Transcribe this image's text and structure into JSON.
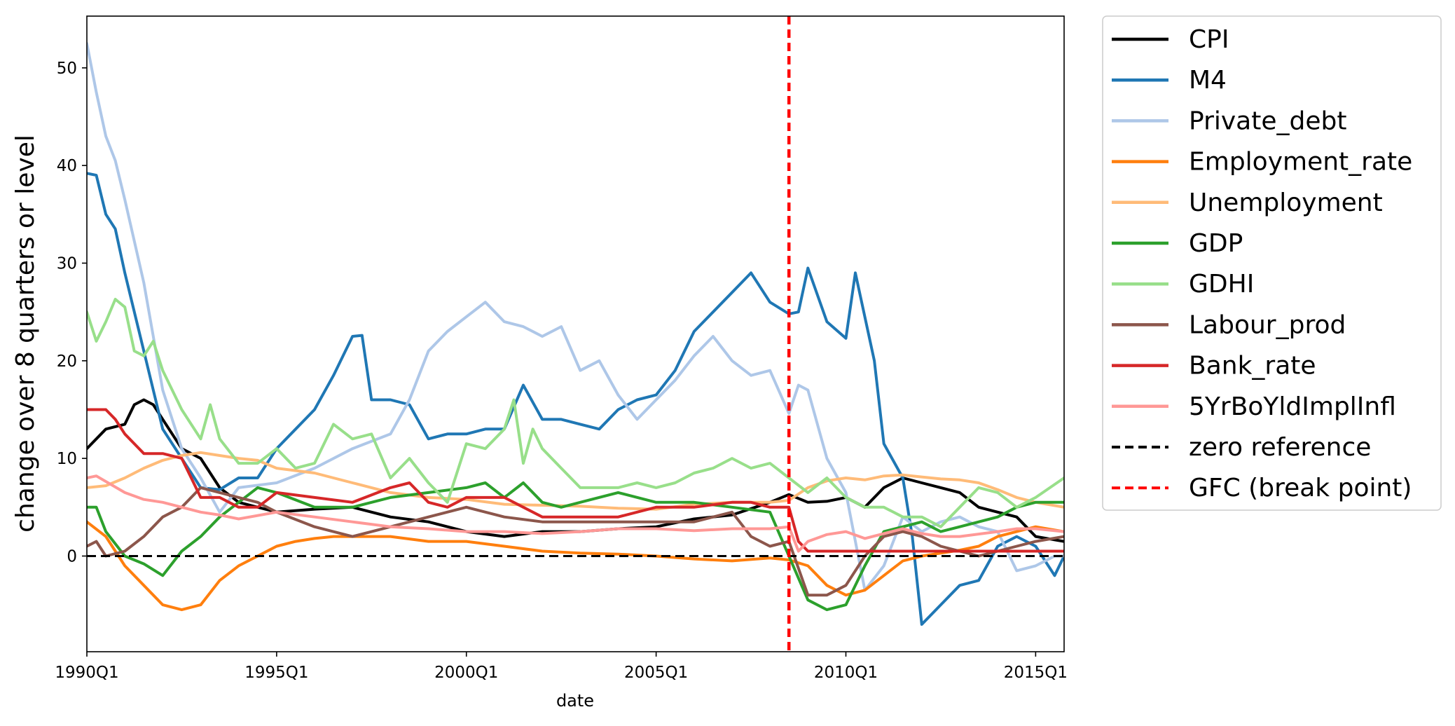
{
  "chart_data": {
    "type": "line",
    "title": "",
    "xlabel": "date",
    "ylabel": "change over 8 quarters or level",
    "xlim": [
      1990.0,
      2015.75
    ],
    "ylim": [
      -9.8,
      55.3
    ],
    "x_ticks": [
      {
        "value": 1990.0,
        "label": "1990Q1"
      },
      {
        "value": 1995.0,
        "label": "1995Q1"
      },
      {
        "value": 2000.0,
        "label": "2000Q1"
      },
      {
        "value": 2005.0,
        "label": "2005Q1"
      },
      {
        "value": 2010.0,
        "label": "2010Q1"
      },
      {
        "value": 2015.0,
        "label": "2015Q1"
      }
    ],
    "y_ticks": [
      0,
      10,
      20,
      30,
      40,
      50
    ],
    "grid": false,
    "legend": "outside-right",
    "series": [
      {
        "name": "CPI",
        "color": "#000000",
        "x": [
          1990.0,
          1990.5,
          1991.0,
          1991.25,
          1991.5,
          1991.75,
          1992.0,
          1992.5,
          1993.0,
          1993.5,
          1994.0,
          1995.0,
          1996.0,
          1997.0,
          1998.0,
          1999.0,
          2000.0,
          2001.0,
          2002.0,
          2003.0,
          2004.0,
          2005.0,
          2006.0,
          2007.0,
          2008.0,
          2008.5,
          2009.0,
          2009.5,
          2010.0,
          2010.5,
          2011.0,
          2011.5,
          2012.0,
          2012.5,
          2013.0,
          2013.5,
          2014.0,
          2014.5,
          2015.0,
          2015.75
        ],
        "y": [
          11,
          13,
          13.5,
          15.5,
          16,
          15.5,
          14,
          11,
          10,
          7,
          5.5,
          4.5,
          4.8,
          5,
          4,
          3.5,
          2.5,
          2,
          2.5,
          2.5,
          2.8,
          3,
          3.8,
          4.2,
          5.5,
          6.3,
          5.5,
          5.6,
          6,
          5,
          7,
          8,
          7.5,
          7,
          6.5,
          5,
          4.5,
          4,
          2,
          1.5
        ]
      },
      {
        "name": "M4",
        "color": "#1f77b4",
        "x": [
          1990.0,
          1990.25,
          1990.5,
          1990.75,
          1991.0,
          1991.5,
          1992.0,
          1992.5,
          1993.0,
          1993.5,
          1994.0,
          1994.5,
          1995.0,
          1995.5,
          1996.0,
          1996.5,
          1997.0,
          1997.25,
          1997.5,
          1998.0,
          1998.5,
          1999.0,
          1999.5,
          2000.0,
          2000.5,
          2001.0,
          2001.5,
          2002.0,
          2002.5,
          2003.0,
          2003.5,
          2004.0,
          2004.5,
          2005.0,
          2005.5,
          2006.0,
          2006.5,
          2007.0,
          2007.5,
          2008.0,
          2008.5,
          2008.75,
          2009.0,
          2009.5,
          2010.0,
          2010.25,
          2010.75,
          2011.0,
          2011.5,
          2011.75,
          2012.0,
          2012.5,
          2013.0,
          2013.5,
          2014.0,
          2014.5,
          2015.0,
          2015.5,
          2015.75
        ],
        "y": [
          39.2,
          39,
          35,
          33.5,
          29,
          21,
          13,
          10,
          7,
          6.8,
          8,
          8,
          11,
          13,
          15,
          18.5,
          22.5,
          22.6,
          16,
          16,
          15.5,
          12,
          12.5,
          12.5,
          13,
          13,
          17.5,
          14,
          14,
          13.5,
          13,
          15,
          16,
          16.5,
          19,
          23,
          25,
          27,
          29,
          26,
          24.8,
          25,
          29.5,
          24,
          22.3,
          29,
          20,
          11.5,
          8,
          2,
          -7,
          -5,
          -3,
          -2.5,
          1,
          2,
          1,
          -2,
          0
        ]
      },
      {
        "name": "Private_debt",
        "color": "#aec7e8",
        "x": [
          1990.0,
          1990.25,
          1990.5,
          1990.75,
          1991.0,
          1991.5,
          1992.0,
          1992.5,
          1993.0,
          1993.5,
          1994.0,
          1995.0,
          1996.0,
          1997.0,
          1998.0,
          1998.5,
          1999.0,
          1999.5,
          2000.0,
          2000.5,
          2001.0,
          2001.5,
          2002.0,
          2002.5,
          2003.0,
          2003.5,
          2004.0,
          2004.5,
          2005.0,
          2005.5,
          2006.0,
          2006.5,
          2007.0,
          2007.5,
          2008.0,
          2008.5,
          2008.75,
          2009.0,
          2009.5,
          2010.0,
          2010.5,
          2011.0,
          2011.5,
          2012.0,
          2012.5,
          2013.0,
          2013.5,
          2014.0,
          2014.5,
          2015.0,
          2015.5,
          2015.75
        ],
        "y": [
          52.5,
          47.5,
          43,
          40.5,
          36.5,
          28,
          17,
          11,
          8,
          4.5,
          7,
          7.5,
          9,
          11,
          12.5,
          16,
          21,
          23,
          24.5,
          26,
          24,
          23.5,
          22.5,
          23.5,
          19,
          20,
          16.5,
          14,
          16,
          18,
          20.5,
          22.5,
          20,
          18.5,
          19,
          14.6,
          17.5,
          17,
          10,
          6.5,
          -3.5,
          -1,
          4,
          2.5,
          3.5,
          4,
          3,
          2.5,
          -1.5,
          -1,
          0,
          0
        ]
      },
      {
        "name": "Employment_rate",
        "color": "#ff7f0e",
        "x": [
          1990.0,
          1990.5,
          1991.0,
          1991.5,
          1992.0,
          1992.5,
          1993.0,
          1993.5,
          1994.0,
          1994.5,
          1995.0,
          1995.5,
          1996.0,
          1996.5,
          1997.0,
          1998.0,
          1999.0,
          2000.0,
          2001.0,
          2002.0,
          2003.0,
          2004.0,
          2005.0,
          2006.0,
          2007.0,
          2008.0,
          2008.5,
          2009.0,
          2009.5,
          2010.0,
          2010.5,
          2011.0,
          2011.5,
          2012.0,
          2012.5,
          2013.0,
          2013.5,
          2014.0,
          2014.5,
          2015.0,
          2015.75
        ],
        "y": [
          3.5,
          2,
          -1,
          -3,
          -5,
          -5.5,
          -5,
          -2.5,
          -1,
          0,
          1,
          1.5,
          1.8,
          2,
          2,
          2,
          1.5,
          1.5,
          1,
          0.5,
          0.3,
          0.2,
          0,
          -0.3,
          -0.5,
          -0.2,
          -0.4,
          -1,
          -3,
          -4,
          -3.5,
          -2,
          -0.5,
          0,
          0.3,
          0.6,
          1,
          2,
          2.5,
          3,
          2.5
        ]
      },
      {
        "name": "Unemployment",
        "color": "#ffbb78",
        "x": [
          1990.0,
          1990.5,
          1991.0,
          1991.5,
          1992.0,
          1992.5,
          1993.0,
          1993.5,
          1994.0,
          1994.5,
          1995.0,
          1996.0,
          1997.0,
          1998.0,
          1999.0,
          2000.0,
          2001.0,
          2002.0,
          2003.0,
          2004.0,
          2005.0,
          2006.0,
          2007.0,
          2008.0,
          2008.5,
          2009.0,
          2009.5,
          2010.0,
          2010.5,
          2011.0,
          2011.5,
          2012.0,
          2012.5,
          2013.0,
          2013.5,
          2014.0,
          2014.5,
          2015.0,
          2015.75
        ],
        "y": [
          7,
          7.2,
          8,
          9,
          9.8,
          10.3,
          10.6,
          10.3,
          10,
          9.8,
          9,
          8.5,
          7.5,
          6.5,
          6,
          5.8,
          5.3,
          5.2,
          5.1,
          4.9,
          4.8,
          5.3,
          5.5,
          5.5,
          5.7,
          7,
          7.7,
          8,
          7.8,
          8.2,
          8.3,
          8.1,
          7.9,
          7.8,
          7.5,
          6.8,
          6,
          5.5,
          5
        ]
      },
      {
        "name": "GDP",
        "color": "#2ca02c",
        "x": [
          1990.0,
          1990.25,
          1990.5,
          1991.0,
          1991.5,
          1992.0,
          1992.5,
          1993.0,
          1993.5,
          1994.0,
          1994.5,
          1995.0,
          1996.0,
          1997.0,
          1998.0,
          1999.0,
          2000.0,
          2000.5,
          2001.0,
          2001.5,
          2002.0,
          2002.5,
          2003.0,
          2004.0,
          2005.0,
          2006.0,
          2007.0,
          2008.0,
          2008.5,
          2009.0,
          2009.5,
          2010.0,
          2010.5,
          2011.0,
          2011.5,
          2012.0,
          2012.5,
          2013.0,
          2013.5,
          2014.0,
          2014.5,
          2015.0,
          2015.75
        ],
        "y": [
          5,
          5,
          2.5,
          0,
          -0.8,
          -2,
          0.5,
          2,
          4,
          5.5,
          7,
          6.5,
          5,
          5,
          6,
          6.5,
          7,
          7.5,
          6,
          7.5,
          5.5,
          5,
          5.5,
          6.5,
          5.5,
          5.5,
          5,
          4.5,
          0,
          -4.5,
          -5.5,
          -5,
          -1,
          2.5,
          3,
          3.5,
          2.5,
          3,
          3.5,
          4,
          5,
          5.5,
          5.5
        ]
      },
      {
        "name": "GDHI",
        "color": "#98df8a",
        "x": [
          1990.0,
          1990.25,
          1990.5,
          1990.75,
          1991.0,
          1991.25,
          1991.5,
          1991.75,
          1992.0,
          1992.5,
          1993.0,
          1993.25,
          1993.5,
          1994.0,
          1994.5,
          1995.0,
          1995.5,
          1996.0,
          1996.5,
          1997.0,
          1997.5,
          1998.0,
          1998.5,
          1999.0,
          1999.5,
          2000.0,
          2000.5,
          2001.0,
          2001.25,
          2001.5,
          2001.75,
          2002.0,
          2002.5,
          2003.0,
          2004.0,
          2004.5,
          2005.0,
          2005.5,
          2006.0,
          2006.5,
          2007.0,
          2007.5,
          2008.0,
          2008.5,
          2009.0,
          2009.5,
          2010.0,
          2010.5,
          2011.0,
          2011.5,
          2012.0,
          2012.5,
          2013.0,
          2013.5,
          2014.0,
          2014.5,
          2015.0,
          2015.75
        ],
        "y": [
          25,
          22,
          24,
          26.3,
          25.5,
          21,
          20.5,
          22,
          19,
          15,
          12,
          15.5,
          12,
          9.5,
          9.5,
          11,
          9,
          9.5,
          13.5,
          12,
          12.5,
          8,
          10,
          7.5,
          5.5,
          11.5,
          11,
          13,
          16,
          9.5,
          13,
          11,
          9,
          7,
          7,
          7.5,
          7,
          7.5,
          8.5,
          9,
          10,
          9,
          9.5,
          8,
          6.5,
          8,
          6,
          5,
          5,
          4,
          4,
          3,
          5,
          7,
          6.5,
          5,
          6,
          8
        ]
      },
      {
        "name": "Labour_prod",
        "color": "#8c564b",
        "x": [
          1990.0,
          1990.25,
          1990.5,
          1991.0,
          1991.5,
          1992.0,
          1992.5,
          1993.0,
          1993.5,
          1994.0,
          1994.5,
          1995.0,
          1996.0,
          1997.0,
          1998.0,
          1999.0,
          2000.0,
          2001.0,
          2002.0,
          2003.0,
          2004.0,
          2005.0,
          2006.0,
          2007.0,
          2007.5,
          2008.0,
          2008.5,
          2009.0,
          2009.5,
          2010.0,
          2010.5,
          2011.0,
          2011.5,
          2012.0,
          2012.5,
          2013.0,
          2013.5,
          2014.0,
          2014.5,
          2015.0,
          2015.75
        ],
        "y": [
          1,
          1.5,
          0,
          0.5,
          2,
          4,
          5,
          7,
          6.5,
          6,
          5.5,
          4.5,
          3,
          2,
          3,
          4,
          5,
          4,
          3.5,
          3.5,
          3.5,
          3.5,
          3.5,
          4.5,
          2,
          1,
          1.5,
          -4,
          -4,
          -3,
          0,
          2,
          2.5,
          2,
          1,
          0.5,
          0,
          0.5,
          1,
          1.5,
          2
        ]
      },
      {
        "name": "Bank_rate",
        "color": "#d62728",
        "x": [
          1990.0,
          1990.5,
          1990.75,
          1991.0,
          1991.5,
          1992.0,
          1992.5,
          1992.75,
          1993.0,
          1993.5,
          1994.0,
          1994.5,
          1995.0,
          1996.0,
          1997.0,
          1998.0,
          1998.5,
          1999.0,
          1999.5,
          2000.0,
          2000.5,
          2001.0,
          2001.5,
          2002.0,
          2003.0,
          2004.0,
          2005.0,
          2006.0,
          2007.0,
          2007.5,
          2008.0,
          2008.5,
          2008.75,
          2009.0,
          2009.5,
          2010.0,
          2011.0,
          2012.0,
          2013.0,
          2014.0,
          2015.0,
          2015.75
        ],
        "y": [
          15,
          15,
          14,
          12.5,
          10.5,
          10.5,
          10,
          8,
          6,
          6,
          5,
          5,
          6.5,
          6,
          5.5,
          7,
          7.5,
          5.5,
          5,
          6,
          6,
          6,
          5,
          4,
          4,
          4,
          5,
          5,
          5.5,
          5.5,
          5,
          5,
          1.5,
          0.5,
          0.5,
          0.5,
          0.5,
          0.5,
          0.5,
          0.5,
          0.5,
          0.5
        ]
      },
      {
        "name": "5YrBoYldImplInfl",
        "color": "#ff9896",
        "x": [
          1990.0,
          1990.25,
          1991.0,
          1991.5,
          1992.0,
          1992.5,
          1993.0,
          1993.5,
          1994.0,
          1995.0,
          1996.0,
          1997.0,
          1998.0,
          1999.0,
          2000.0,
          2001.0,
          2002.0,
          2003.0,
          2004.0,
          2005.0,
          2006.0,
          2007.0,
          2007.5,
          2008.0,
          2008.5,
          2008.75,
          2009.0,
          2009.5,
          2010.0,
          2010.5,
          2011.0,
          2011.5,
          2012.0,
          2012.5,
          2013.0,
          2014.0,
          2014.5,
          2015.0,
          2015.75
        ],
        "y": [
          8,
          8.2,
          6.5,
          5.8,
          5.5,
          5,
          4.5,
          4.2,
          3.8,
          4.5,
          4,
          3.5,
          3,
          2.8,
          2.5,
          2.5,
          2.3,
          2.5,
          2.8,
          2.8,
          2.6,
          2.8,
          2.8,
          2.8,
          3,
          0.5,
          1.5,
          2.2,
          2.5,
          1.8,
          2.3,
          2.8,
          2.3,
          2,
          2,
          2.5,
          2.8,
          2.8,
          2.5
        ]
      }
    ],
    "reference_lines": [
      {
        "name": "zero reference",
        "orientation": "horizontal",
        "value": 0,
        "color": "#000000",
        "style": "dashed"
      },
      {
        "name": "GFC (break point)",
        "orientation": "vertical",
        "value": 2008.5,
        "color": "#ff0000",
        "style": "dashed"
      }
    ]
  }
}
